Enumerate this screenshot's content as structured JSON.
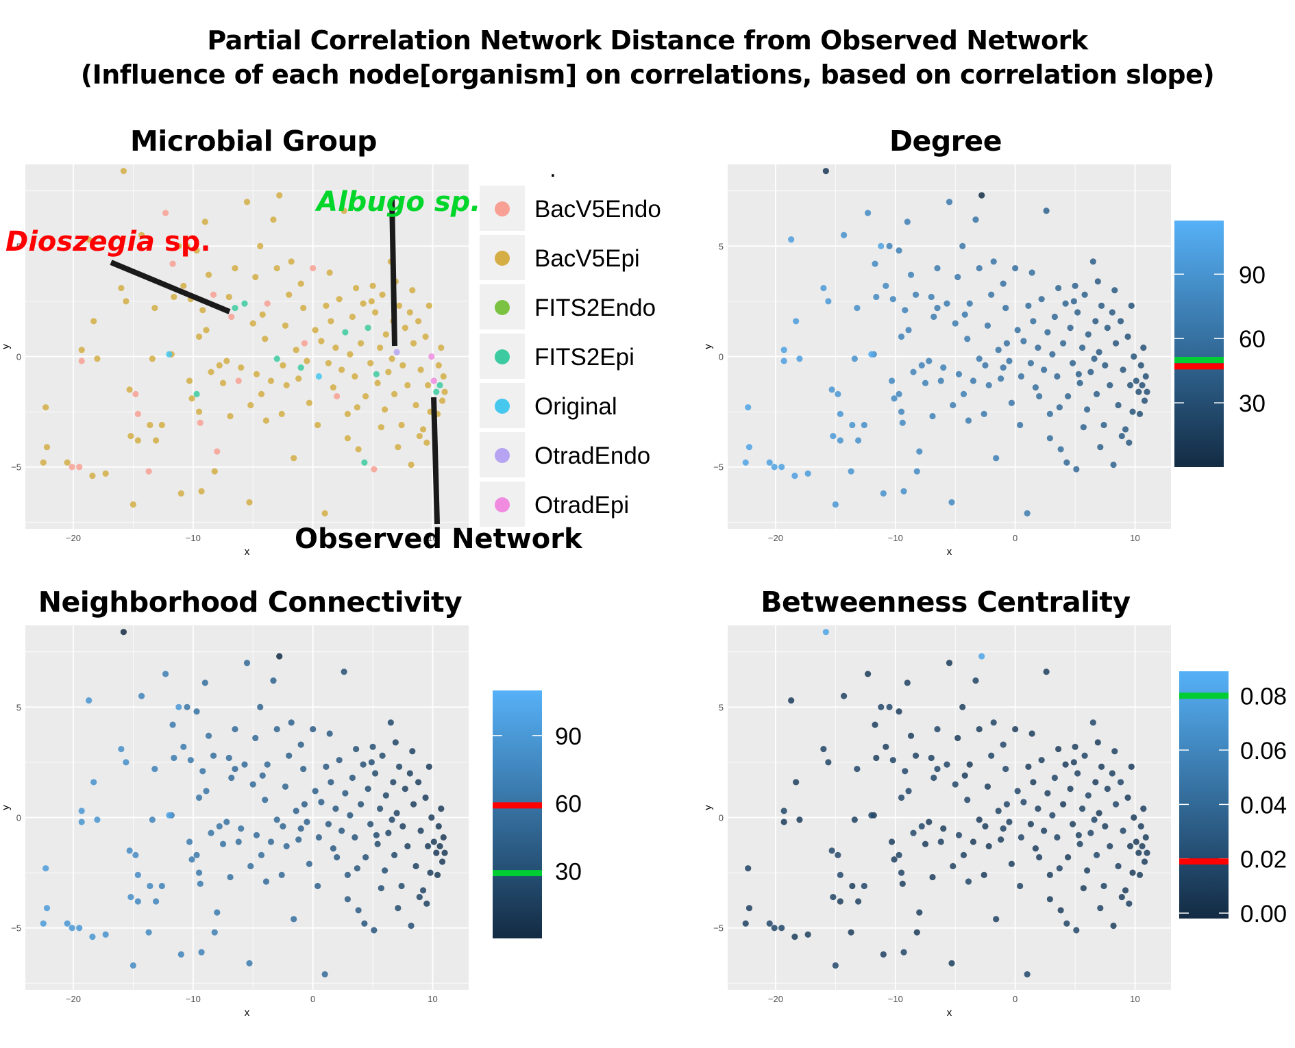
{
  "figure": {
    "title_line1": "Partial Correlation Network Distance from Observed Network",
    "title_line2": "(Influence of each node[organism] on correlations, based on correlation slope)"
  },
  "annotations": {
    "dioszegia_italic": "Dioszegia",
    "dioszegia_plain": " sp.",
    "albugo": "Albugo sp.",
    "observed": "Observed Network"
  },
  "colors": {
    "panel_bg": "#ebebeb",
    "grid": "#ffffff",
    "gradient_low": "#132b43",
    "gradient_high": "#56b1f7",
    "marker_red": "#ff0000",
    "marker_green": "#00cc33",
    "annot_red": "#ff0000",
    "annot_green": "#00d62a",
    "pointer_line": "#1a1a1a"
  },
  "legend_groups": [
    {
      "name": "BacV5Endo",
      "color": "#f8a094"
    },
    {
      "name": "BacV5Epi",
      "color": "#d4ae44"
    },
    {
      "name": "FITS2Endo",
      "color": "#7cc242"
    },
    {
      "name": "FITS2Epi",
      "color": "#3ccba0"
    },
    {
      "name": "Original",
      "color": "#45c7ee"
    },
    {
      "name": "OtradEndo",
      "color": "#b6a4f2"
    },
    {
      "name": "OtradEpi",
      "color": "#f08be0"
    }
  ],
  "legend_dot": ".",
  "chart_data": [
    {
      "id": "microbial_group",
      "type": "scatter",
      "title": "Microbial Group",
      "xlabel": "x",
      "ylabel": "y",
      "xlim": [
        -24,
        13
      ],
      "ylim": [
        -7.8,
        8.7
      ],
      "xticks": [
        -20,
        -10,
        0,
        10
      ],
      "yticks": [
        -5,
        0,
        5
      ],
      "color_by": "group",
      "legend": [
        "BacV5Endo",
        "BacV5Epi",
        "FITS2Endo",
        "FITS2Epi",
        "Original",
        "OtradEndo",
        "OtradEpi"
      ]
    },
    {
      "id": "degree",
      "type": "scatter",
      "title": "Degree",
      "xlabel": "x",
      "ylabel": "y",
      "xlim": [
        -24,
        13
      ],
      "ylim": [
        -7.8,
        8.7
      ],
      "xticks": [
        -20,
        -10,
        0,
        10
      ],
      "yticks": [
        -5,
        0,
        5
      ],
      "color_by": "continuous",
      "colorbar": {
        "min": 0,
        "max": 115,
        "ticks": [
          "30",
          "60",
          "90"
        ],
        "red_marker": 47,
        "green_marker": 50
      }
    },
    {
      "id": "neighborhood_connectivity",
      "type": "scatter",
      "title": "Neighborhood Connectivity",
      "xlabel": "x",
      "ylabel": "y",
      "xlim": [
        -24,
        13
      ],
      "ylim": [
        -7.8,
        8.7
      ],
      "xticks": [
        -20,
        -10,
        0,
        10
      ],
      "yticks": [
        -5,
        0,
        5
      ],
      "color_by": "continuous",
      "colorbar": {
        "min": 0,
        "max": 110,
        "ticks": [
          "30",
          "60",
          "90"
        ],
        "red_marker": 59,
        "green_marker": 29
      }
    },
    {
      "id": "betweenness_centrality",
      "type": "scatter",
      "title": "Betweenness Centrality",
      "xlabel": "x",
      "ylabel": "y",
      "xlim": [
        -24,
        13
      ],
      "ylim": [
        -7.8,
        8.7
      ],
      "xticks": [
        -20,
        -10,
        0,
        10
      ],
      "yticks": [
        -5,
        0,
        5
      ],
      "color_by": "continuous",
      "colorbar": {
        "min": -0.002,
        "max": 0.089,
        "ticks": [
          "0.00",
          "0.02",
          "0.04",
          "0.06",
          "0.08"
        ],
        "red_marker": 0.019,
        "green_marker": 0.08
      }
    }
  ],
  "points": [
    {
      "x": -22.3,
      "y": -2.3,
      "g": 1,
      "d": 10
    },
    {
      "x": -22.2,
      "y": -4.1,
      "g": 1,
      "d": 10
    },
    {
      "x": -22.5,
      "y": -4.8,
      "g": 1,
      "d": 10
    },
    {
      "x": -20.5,
      "y": -4.8,
      "g": 1,
      "d": 12
    },
    {
      "x": -20.1,
      "y": -5.0,
      "g": 0,
      "d": 12
    },
    {
      "x": -19.5,
      "y": -5.0,
      "g": 0,
      "d": 12
    },
    {
      "x": -19.3,
      "y": 0.3,
      "g": 1,
      "d": 12
    },
    {
      "x": -19.3,
      "y": -0.2,
      "g": 0,
      "d": 14
    },
    {
      "x": -18.7,
      "y": 5.3,
      "g": 1,
      "d": 14
    },
    {
      "x": -18.3,
      "y": 1.6,
      "g": 1,
      "d": 16
    },
    {
      "x": -18.0,
      "y": -0.1,
      "g": 1,
      "d": 14
    },
    {
      "x": -18.4,
      "y": -5.4,
      "g": 1,
      "d": 14
    },
    {
      "x": -17.3,
      "y": -5.3,
      "g": 1,
      "d": 16
    },
    {
      "x": -15.8,
      "y": 8.4,
      "g": 1,
      "d": 90
    },
    {
      "x": -15.6,
      "y": 2.5,
      "g": 1,
      "d": 18
    },
    {
      "x": -16.0,
      "y": 3.1,
      "g": 1,
      "d": 18
    },
    {
      "x": -15.2,
      "y": -3.6,
      "g": 1,
      "d": 18
    },
    {
      "x": -15.0,
      "y": -6.7,
      "g": 1,
      "d": 20
    },
    {
      "x": -14.8,
      "y": -1.7,
      "g": 0,
      "d": 20
    },
    {
      "x": -14.6,
      "y": -2.6,
      "g": 0,
      "d": 20
    },
    {
      "x": -14.6,
      "y": -3.8,
      "g": 1,
      "d": 22
    },
    {
      "x": -14.3,
      "y": 5.5,
      "g": 1,
      "d": 24
    },
    {
      "x": -13.6,
      "y": -3.1,
      "g": 1,
      "d": 22
    },
    {
      "x": -13.7,
      "y": -5.2,
      "g": 0,
      "d": 22
    },
    {
      "x": -13.4,
      "y": -0.1,
      "g": 1,
      "d": 24
    },
    {
      "x": -13.2,
      "y": 2.2,
      "g": 1,
      "d": 26
    },
    {
      "x": -13.1,
      "y": -3.8,
      "g": 1,
      "d": 24
    },
    {
      "x": -12.6,
      "y": -3.1,
      "g": 1,
      "d": 26
    },
    {
      "x": -12.3,
      "y": 6.5,
      "g": 0,
      "d": 28
    },
    {
      "x": -11.8,
      "y": 0.1,
      "g": 1,
      "d": 28
    },
    {
      "x": -11.7,
      "y": 4.2,
      "g": 0,
      "d": 30
    },
    {
      "x": -11.6,
      "y": 2.7,
      "g": 1,
      "d": 30
    },
    {
      "x": -11.0,
      "y": -6.2,
      "g": 1,
      "d": 24
    },
    {
      "x": -10.8,
      "y": 3.2,
      "g": 1,
      "d": 30
    },
    {
      "x": -10.5,
      "y": 5.0,
      "g": 1,
      "d": 34
    },
    {
      "x": -10.2,
      "y": 2.6,
      "g": 1,
      "d": 32
    },
    {
      "x": -10.1,
      "y": -1.9,
      "g": 1,
      "d": 30
    },
    {
      "x": -9.7,
      "y": -1.7,
      "g": 3,
      "d": 32
    },
    {
      "x": -9.5,
      "y": -2.5,
      "g": 1,
      "d": 32
    },
    {
      "x": -9.5,
      "y": 0.9,
      "g": 1,
      "d": 34
    },
    {
      "x": -9.7,
      "y": 4.8,
      "g": 1,
      "d": 36
    },
    {
      "x": -9.3,
      "y": -6.1,
      "g": 1,
      "d": 26
    },
    {
      "x": -9.2,
      "y": 2.1,
      "g": 1,
      "d": 34
    },
    {
      "x": -9.0,
      "y": 6.1,
      "g": 1,
      "d": 38
    },
    {
      "x": -9.4,
      "y": -3.0,
      "g": 0,
      "d": 30
    },
    {
      "x": -8.5,
      "y": -0.7,
      "g": 1,
      "d": 34
    },
    {
      "x": -8.7,
      "y": 3.7,
      "g": 1,
      "d": 36
    },
    {
      "x": -8.2,
      "y": -5.2,
      "g": 1,
      "d": 28
    },
    {
      "x": -8.3,
      "y": 2.8,
      "g": 0,
      "d": 38
    },
    {
      "x": -8.0,
      "y": -4.3,
      "g": 0,
      "d": 30
    },
    {
      "x": -7.8,
      "y": -0.4,
      "g": 1,
      "d": 34
    },
    {
      "x": -7.2,
      "y": -0.2,
      "g": 1,
      "d": 36
    },
    {
      "x": -7.0,
      "y": 2.7,
      "g": 1,
      "d": 38
    },
    {
      "x": -6.9,
      "y": -2.7,
      "g": 1,
      "d": 36
    },
    {
      "x": -6.5,
      "y": 4.0,
      "g": 1,
      "d": 40
    },
    {
      "x": -6.5,
      "y": 2.2,
      "g": 3,
      "d": 40
    },
    {
      "x": -6.2,
      "y": -1.1,
      "g": 0,
      "d": 38
    },
    {
      "x": -6.0,
      "y": -0.5,
      "g": 1,
      "d": 36
    },
    {
      "x": -5.7,
      "y": 2.4,
      "g": 3,
      "d": 40
    },
    {
      "x": -5.5,
      "y": 7.0,
      "g": 1,
      "d": 42
    },
    {
      "x": -5.2,
      "y": -2.2,
      "g": 1,
      "d": 38
    },
    {
      "x": -5.3,
      "y": -6.6,
      "g": 1,
      "d": 30
    },
    {
      "x": -5.0,
      "y": 1.5,
      "g": 1,
      "d": 40
    },
    {
      "x": -4.8,
      "y": 3.6,
      "g": 1,
      "d": 42
    },
    {
      "x": -4.7,
      "y": -0.8,
      "g": 1,
      "d": 40
    },
    {
      "x": -4.4,
      "y": 5.0,
      "g": 1,
      "d": 44
    },
    {
      "x": -4.3,
      "y": -1.7,
      "g": 1,
      "d": 38
    },
    {
      "x": -4.0,
      "y": 0.8,
      "g": 1,
      "d": 40
    },
    {
      "x": -3.8,
      "y": 2.4,
      "g": 0,
      "d": 42
    },
    {
      "x": -3.5,
      "y": -1.1,
      "g": 1,
      "d": 42
    },
    {
      "x": -3.3,
      "y": 6.2,
      "g": 1,
      "d": 46
    },
    {
      "x": -3.0,
      "y": -0.1,
      "g": 3,
      "d": 42
    },
    {
      "x": -3.0,
      "y": 4.0,
      "g": 1,
      "d": 44
    },
    {
      "x": -2.8,
      "y": 7.3,
      "g": 1,
      "d": 98
    },
    {
      "x": -2.5,
      "y": -0.4,
      "g": 1,
      "d": 44
    },
    {
      "x": -2.3,
      "y": 1.4,
      "g": 1,
      "d": 44
    },
    {
      "x": -2.2,
      "y": -1.3,
      "g": 1,
      "d": 42
    },
    {
      "x": -2.0,
      "y": 2.8,
      "g": 1,
      "d": 46
    },
    {
      "x": -1.8,
      "y": 4.3,
      "g": 1,
      "d": 46
    },
    {
      "x": -1.6,
      "y": -4.6,
      "g": 1,
      "d": 38
    },
    {
      "x": -1.4,
      "y": 0.3,
      "g": 1,
      "d": 46
    },
    {
      "x": -1.2,
      "y": -1.0,
      "g": 1,
      "d": 44
    },
    {
      "x": -1.0,
      "y": 3.3,
      "g": 1,
      "d": 48
    },
    {
      "x": -0.8,
      "y": 2.2,
      "g": 1,
      "d": 48
    },
    {
      "x": -0.5,
      "y": -0.2,
      "g": 1,
      "d": 46
    },
    {
      "x": -0.3,
      "y": -2.1,
      "g": 1,
      "d": 44
    },
    {
      "x": 0.0,
      "y": 4.0,
      "g": 0,
      "d": 50
    },
    {
      "x": 0.2,
      "y": 1.2,
      "g": 1,
      "d": 48
    },
    {
      "x": 0.5,
      "y": -0.9,
      "g": 4,
      "d": 48
    },
    {
      "x": 0.7,
      "y": 0.7,
      "g": 1,
      "d": 48
    },
    {
      "x": 1.0,
      "y": -7.1,
      "g": 1,
      "d": 40
    },
    {
      "x": 1.1,
      "y": 2.3,
      "g": 1,
      "d": 50
    },
    {
      "x": 1.3,
      "y": -0.3,
      "g": 1,
      "d": 50
    },
    {
      "x": 1.5,
      "y": 1.6,
      "g": 1,
      "d": 50
    },
    {
      "x": 1.7,
      "y": -1.4,
      "g": 1,
      "d": 50
    },
    {
      "x": 1.9,
      "y": 0.4,
      "g": 1,
      "d": 52
    },
    {
      "x": 2.2,
      "y": 2.6,
      "g": 1,
      "d": 52
    },
    {
      "x": 2.4,
      "y": -0.6,
      "g": 1,
      "d": 52
    },
    {
      "x": 2.6,
      "y": 6.6,
      "g": 1,
      "d": 58
    },
    {
      "x": 2.7,
      "y": 1.1,
      "g": 3,
      "d": 52
    },
    {
      "x": 2.9,
      "y": -2.6,
      "g": 1,
      "d": 50
    },
    {
      "x": 3.1,
      "y": 0.1,
      "g": 1,
      "d": 54
    },
    {
      "x": 3.3,
      "y": 1.8,
      "g": 1,
      "d": 54
    },
    {
      "x": 3.5,
      "y": -0.9,
      "g": 1,
      "d": 54
    },
    {
      "x": 3.6,
      "y": 3.1,
      "g": 1,
      "d": 56
    },
    {
      "x": 3.8,
      "y": -4.2,
      "g": 1,
      "d": 50
    },
    {
      "x": 4.0,
      "y": 0.6,
      "g": 1,
      "d": 56
    },
    {
      "x": 4.2,
      "y": 2.4,
      "g": 1,
      "d": 56
    },
    {
      "x": 4.4,
      "y": -1.8,
      "g": 1,
      "d": 56
    },
    {
      "x": 4.6,
      "y": 1.3,
      "g": 3,
      "d": 58
    },
    {
      "x": 4.8,
      "y": -0.3,
      "g": 1,
      "d": 58
    },
    {
      "x": 5.0,
      "y": 3.2,
      "g": 1,
      "d": 58
    },
    {
      "x": 5.1,
      "y": -5.1,
      "g": 0,
      "d": 54
    },
    {
      "x": 5.2,
      "y": 2.0,
      "g": 1,
      "d": 60
    },
    {
      "x": 5.4,
      "y": -1.2,
      "g": 1,
      "d": 60
    },
    {
      "x": 5.6,
      "y": 0.4,
      "g": 1,
      "d": 60
    },
    {
      "x": 5.8,
      "y": 2.8,
      "g": 1,
      "d": 60
    },
    {
      "x": 6.0,
      "y": -2.4,
      "g": 1,
      "d": 58
    },
    {
      "x": 6.1,
      "y": 1.0,
      "g": 1,
      "d": 62
    },
    {
      "x": 6.3,
      "y": -0.7,
      "g": 1,
      "d": 62
    },
    {
      "x": 6.5,
      "y": 4.3,
      "g": 1,
      "d": 62
    },
    {
      "x": 6.7,
      "y": 1.6,
      "g": 1,
      "d": 64
    },
    {
      "x": 6.8,
      "y": -1.7,
      "g": 1,
      "d": 62
    },
    {
      "x": 7.0,
      "y": 0.2,
      "g": 5,
      "d": 64
    },
    {
      "x": 7.2,
      "y": 2.3,
      "g": 1,
      "d": 64
    },
    {
      "x": 7.4,
      "y": -3.1,
      "g": 1,
      "d": 60
    },
    {
      "x": 7.5,
      "y": -0.4,
      "g": 1,
      "d": 66
    },
    {
      "x": 7.7,
      "y": 1.3,
      "g": 1,
      "d": 66
    },
    {
      "x": 7.9,
      "y": -1.3,
      "g": 1,
      "d": 66
    },
    {
      "x": 8.1,
      "y": 2.0,
      "g": 1,
      "d": 66
    },
    {
      "x": 8.2,
      "y": -4.9,
      "g": 1,
      "d": 58
    },
    {
      "x": 8.4,
      "y": 0.6,
      "g": 1,
      "d": 68
    },
    {
      "x": 8.6,
      "y": -2.2,
      "g": 1,
      "d": 66
    },
    {
      "x": 8.8,
      "y": 1.6,
      "g": 1,
      "d": 68
    },
    {
      "x": 9.0,
      "y": -0.6,
      "g": 1,
      "d": 68
    },
    {
      "x": 9.2,
      "y": -3.3,
      "g": 1,
      "d": 64
    },
    {
      "x": 9.4,
      "y": 0.9,
      "g": 1,
      "d": 70
    },
    {
      "x": 9.6,
      "y": -1.3,
      "g": 1,
      "d": 70
    },
    {
      "x": 9.8,
      "y": -2.5,
      "g": 1,
      "d": 70
    },
    {
      "x": 9.9,
      "y": 0.0,
      "g": 6,
      "d": 70
    },
    {
      "x": 10.1,
      "y": -1.1,
      "g": 6,
      "d": 70
    },
    {
      "x": 10.3,
      "y": -1.6,
      "g": 3,
      "d": 72
    },
    {
      "x": 10.5,
      "y": -0.4,
      "g": 1,
      "d": 72
    },
    {
      "x": 10.6,
      "y": -1.3,
      "g": 3,
      "d": 72
    },
    {
      "x": 10.8,
      "y": -2.0,
      "g": 1,
      "d": 72
    },
    {
      "x": 10.9,
      "y": -0.9,
      "g": 1,
      "d": 72
    },
    {
      "x": 11.0,
      "y": -1.6,
      "g": 1,
      "d": 72
    },
    {
      "x": 10.7,
      "y": 0.4,
      "g": 1,
      "d": 72
    },
    {
      "x": 10.4,
      "y": -2.6,
      "g": 1,
      "d": 72
    },
    {
      "x": 9.5,
      "y": -3.9,
      "g": 1,
      "d": 66
    },
    {
      "x": -12.0,
      "y": 0.1,
      "g": 4,
      "d": 6
    },
    {
      "x": -11.2,
      "y": 5.0,
      "g": 1,
      "d": 12
    },
    {
      "x": -6.8,
      "y": 1.8,
      "g": 0,
      "d": 40
    },
    {
      "x": -1.0,
      "y": -0.5,
      "g": 3,
      "d": 46
    },
    {
      "x": 4.3,
      "y": -4.8,
      "g": 3,
      "d": 54
    },
    {
      "x": 6.6,
      "y": -0.1,
      "g": 1,
      "d": 62
    },
    {
      "x": 2.0,
      "y": -1.8,
      "g": 0,
      "d": 50
    },
    {
      "x": -0.7,
      "y": 0.6,
      "g": 0,
      "d": 48
    },
    {
      "x": 3.7,
      "y": -2.3,
      "g": 1,
      "d": 54
    },
    {
      "x": 8.9,
      "y": -3.6,
      "g": 1,
      "d": 64
    },
    {
      "x": 7.1,
      "y": -4.1,
      "g": 1,
      "d": 60
    },
    {
      "x": 5.7,
      "y": -3.2,
      "g": 1,
      "d": 58
    },
    {
      "x": 6.9,
      "y": 3.4,
      "g": 1,
      "d": 64
    },
    {
      "x": 4.9,
      "y": 2.5,
      "g": 1,
      "d": 58
    },
    {
      "x": -2.6,
      "y": -2.6,
      "g": 1,
      "d": 42
    },
    {
      "x": -7.5,
      "y": -1.2,
      "g": 1,
      "d": 36
    },
    {
      "x": -10.3,
      "y": -1.1,
      "g": 1,
      "d": 30
    },
    {
      "x": -15.3,
      "y": -1.5,
      "g": 1,
      "d": 20
    },
    {
      "x": 1.4,
      "y": 3.8,
      "g": 1,
      "d": 50
    },
    {
      "x": -3.9,
      "y": -2.9,
      "g": 1,
      "d": 40
    },
    {
      "x": 0.4,
      "y": -3.1,
      "g": 1,
      "d": 46
    },
    {
      "x": 2.9,
      "y": -3.7,
      "g": 1,
      "d": 50
    },
    {
      "x": 8.3,
      "y": 3.0,
      "g": 1,
      "d": 66
    },
    {
      "x": 9.7,
      "y": 2.3,
      "g": 1,
      "d": 70
    },
    {
      "x": 5.3,
      "y": -0.8,
      "g": 3,
      "d": 60
    },
    {
      "x": -4.2,
      "y": 1.9,
      "g": 1,
      "d": 42
    },
    {
      "x": -8.9,
      "y": 1.2,
      "g": 1,
      "d": 34
    }
  ]
}
